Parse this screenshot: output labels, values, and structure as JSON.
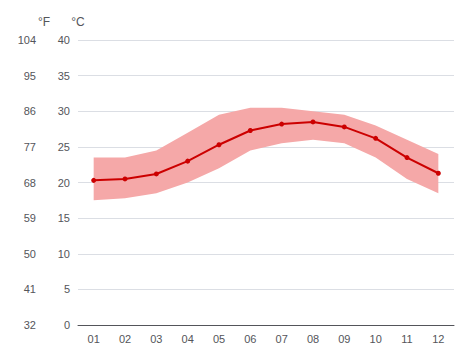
{
  "chart_data": {
    "type": "line",
    "categories": [
      "01",
      "02",
      "03",
      "04",
      "05",
      "06",
      "07",
      "08",
      "09",
      "10",
      "11",
      "12"
    ],
    "series": [
      {
        "type": "band",
        "color": "#f5a8a8",
        "low": [
          17.5,
          17.8,
          18.5,
          20.0,
          22.0,
          24.5,
          25.5,
          26.0,
          25.5,
          23.5,
          20.5,
          18.5
        ],
        "high": [
          23.5,
          23.5,
          24.5,
          27.0,
          29.5,
          30.5,
          30.5,
          30.0,
          29.5,
          28.0,
          26.0,
          24.0
        ]
      },
      {
        "type": "line",
        "color": "#cc0000",
        "marker": "circle",
        "values": [
          20.3,
          20.5,
          21.2,
          23.0,
          25.3,
          27.3,
          28.2,
          28.5,
          27.8,
          26.2,
          23.5,
          21.3
        ]
      }
    ],
    "ylabel": "°C",
    "ylim": [
      0,
      40
    ],
    "yticks": [
      0,
      5,
      10,
      15,
      20,
      25,
      30,
      35,
      40
    ],
    "y2label": "°F",
    "y2lim": [
      32,
      104
    ],
    "y2ticks": [
      32,
      41,
      50,
      59,
      68,
      77,
      86,
      95,
      104
    ],
    "grid": true
  }
}
